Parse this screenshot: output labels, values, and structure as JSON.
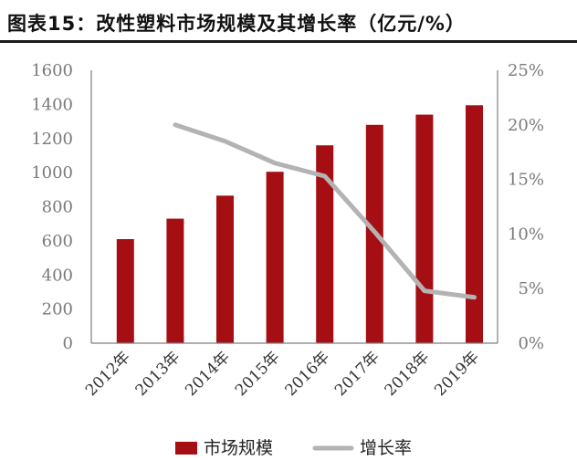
{
  "header": {
    "title": "图表15：改性塑料市场规模及其增长率（亿元/%）"
  },
  "colors": {
    "bar": "#a50f14",
    "line": "#b3b3b3",
    "axis": "#7f7f7f"
  },
  "chart_data": {
    "type": "bar",
    "categories": [
      "2012年",
      "2013年",
      "2014年",
      "2015年",
      "2016年",
      "2017年",
      "2018年",
      "2019年"
    ],
    "series": [
      {
        "name": "市场规模",
        "type": "bar",
        "axis": "left",
        "values": [
          610,
          730,
          865,
          1005,
          1160,
          1280,
          1340,
          1395
        ]
      },
      {
        "name": "增长率",
        "type": "line",
        "axis": "right",
        "values": [
          null,
          20.0,
          18.5,
          16.5,
          15.3,
          10.2,
          4.8,
          4.2
        ]
      }
    ],
    "left_axis": {
      "range": [
        0,
        1600
      ],
      "ticks": [
        "0",
        "200",
        "400",
        "600",
        "800",
        "1000",
        "1200",
        "1400",
        "1600"
      ]
    },
    "right_axis": {
      "range": [
        0,
        25
      ],
      "ticks": [
        "0%",
        "5%",
        "10%",
        "15%",
        "20%",
        "25%"
      ]
    },
    "grid": false,
    "legend_position": "bottom"
  }
}
